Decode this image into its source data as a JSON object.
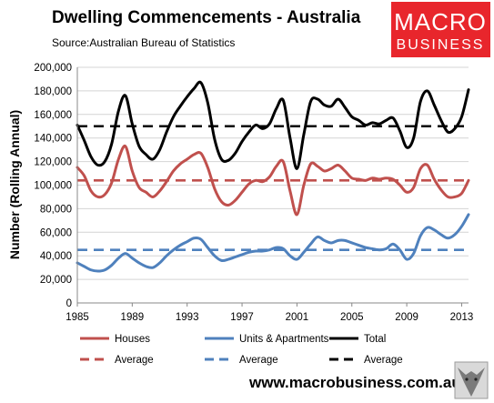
{
  "title": "Dwelling Commencements - Australia",
  "subtitle": "Source:Australian Bureau of Statistics",
  "logo": {
    "line1": "MACRO",
    "line2": "BUSINESS"
  },
  "website": "www.macrobusiness.com.au",
  "colors": {
    "houses": "#c0504d",
    "units": "#4f81bd",
    "total": "#000000",
    "logo_bg": "#e8262c"
  },
  "chart_data": {
    "type": "line",
    "ylabel": "Number (Rolling Annual)",
    "xlabel": "",
    "xlim": [
      1985,
      2013.5
    ],
    "ylim": [
      0,
      200000
    ],
    "x_ticks": [
      "1985",
      "1989",
      "1993",
      "1997",
      "2001",
      "2005",
      "2009",
      "2013"
    ],
    "y_ticks": [
      "0",
      "20,000",
      "40,000",
      "60,000",
      "80,000",
      "100,000",
      "120,000",
      "140,000",
      "160,000",
      "180,000",
      "200,000"
    ],
    "grid": true,
    "legend": [
      "Houses",
      "Units & Apartments",
      "Total",
      "Average",
      "Average",
      "Average"
    ],
    "x": [
      1985.0,
      1985.5,
      1986.0,
      1986.5,
      1987.0,
      1987.5,
      1988.0,
      1988.5,
      1989.0,
      1989.5,
      1990.0,
      1990.5,
      1991.0,
      1991.5,
      1992.0,
      1992.5,
      1993.0,
      1993.5,
      1994.0,
      1994.5,
      1995.0,
      1995.5,
      1996.0,
      1996.5,
      1997.0,
      1997.5,
      1998.0,
      1998.5,
      1999.0,
      1999.5,
      2000.0,
      2000.5,
      2001.0,
      2001.5,
      2002.0,
      2002.5,
      2003.0,
      2003.5,
      2004.0,
      2004.5,
      2005.0,
      2005.5,
      2006.0,
      2006.5,
      2007.0,
      2007.5,
      2008.0,
      2008.5,
      2009.0,
      2009.5,
      2010.0,
      2010.5,
      2011.0,
      2011.5,
      2012.0,
      2012.5,
      2013.0,
      2013.5
    ],
    "series": [
      {
        "name": "Houses",
        "style": "solid",
        "values": [
          115000,
          108000,
          95000,
          90000,
          92000,
          102000,
          122000,
          133000,
          112000,
          98000,
          94000,
          90000,
          95000,
          103000,
          112000,
          118000,
          122000,
          126000,
          127000,
          115000,
          97000,
          86000,
          83000,
          87000,
          94000,
          101000,
          104000,
          103000,
          107000,
          116000,
          120000,
          95000,
          75000,
          100000,
          118000,
          116000,
          112000,
          114000,
          117000,
          112000,
          106000,
          105000,
          104000,
          106000,
          105000,
          106000,
          105000,
          100000,
          94000,
          98000,
          114000,
          117000,
          105000,
          96000,
          90000,
          90000,
          93000,
          104000
        ]
      },
      {
        "name": "Units & Apartments",
        "style": "solid",
        "values": [
          34000,
          31000,
          28000,
          27000,
          28000,
          32000,
          38000,
          42000,
          38000,
          34000,
          31000,
          30000,
          34000,
          40000,
          45000,
          49000,
          52000,
          55000,
          54000,
          47000,
          40000,
          36000,
          37000,
          39000,
          41000,
          43000,
          44000,
          44000,
          45000,
          47000,
          46000,
          40000,
          37000,
          43000,
          50000,
          56000,
          53000,
          51000,
          53000,
          53000,
          51000,
          49000,
          47000,
          46000,
          45000,
          46000,
          50000,
          45000,
          37000,
          42000,
          57000,
          64000,
          62000,
          58000,
          55000,
          58000,
          65000,
          75000
        ]
      },
      {
        "name": "Total",
        "style": "solid",
        "values": [
          151000,
          138000,
          124000,
          117000,
          120000,
          135000,
          163000,
          176000,
          152000,
          133000,
          126000,
          122000,
          130000,
          145000,
          158000,
          167000,
          175000,
          182000,
          187000,
          170000,
          139000,
          122000,
          121000,
          127000,
          137000,
          145000,
          151000,
          148000,
          152000,
          165000,
          172000,
          140000,
          114000,
          143000,
          171000,
          173000,
          168000,
          167000,
          173000,
          166000,
          158000,
          155000,
          151000,
          153000,
          152000,
          155000,
          157000,
          146000,
          132000,
          140000,
          171000,
          180000,
          168000,
          155000,
          145000,
          148000,
          158000,
          181000
        ]
      },
      {
        "name": "Houses Average",
        "style": "dashed",
        "value": 104000
      },
      {
        "name": "Units Average",
        "style": "dashed",
        "value": 45000
      },
      {
        "name": "Total Average",
        "style": "dashed",
        "value": 150000
      }
    ]
  }
}
